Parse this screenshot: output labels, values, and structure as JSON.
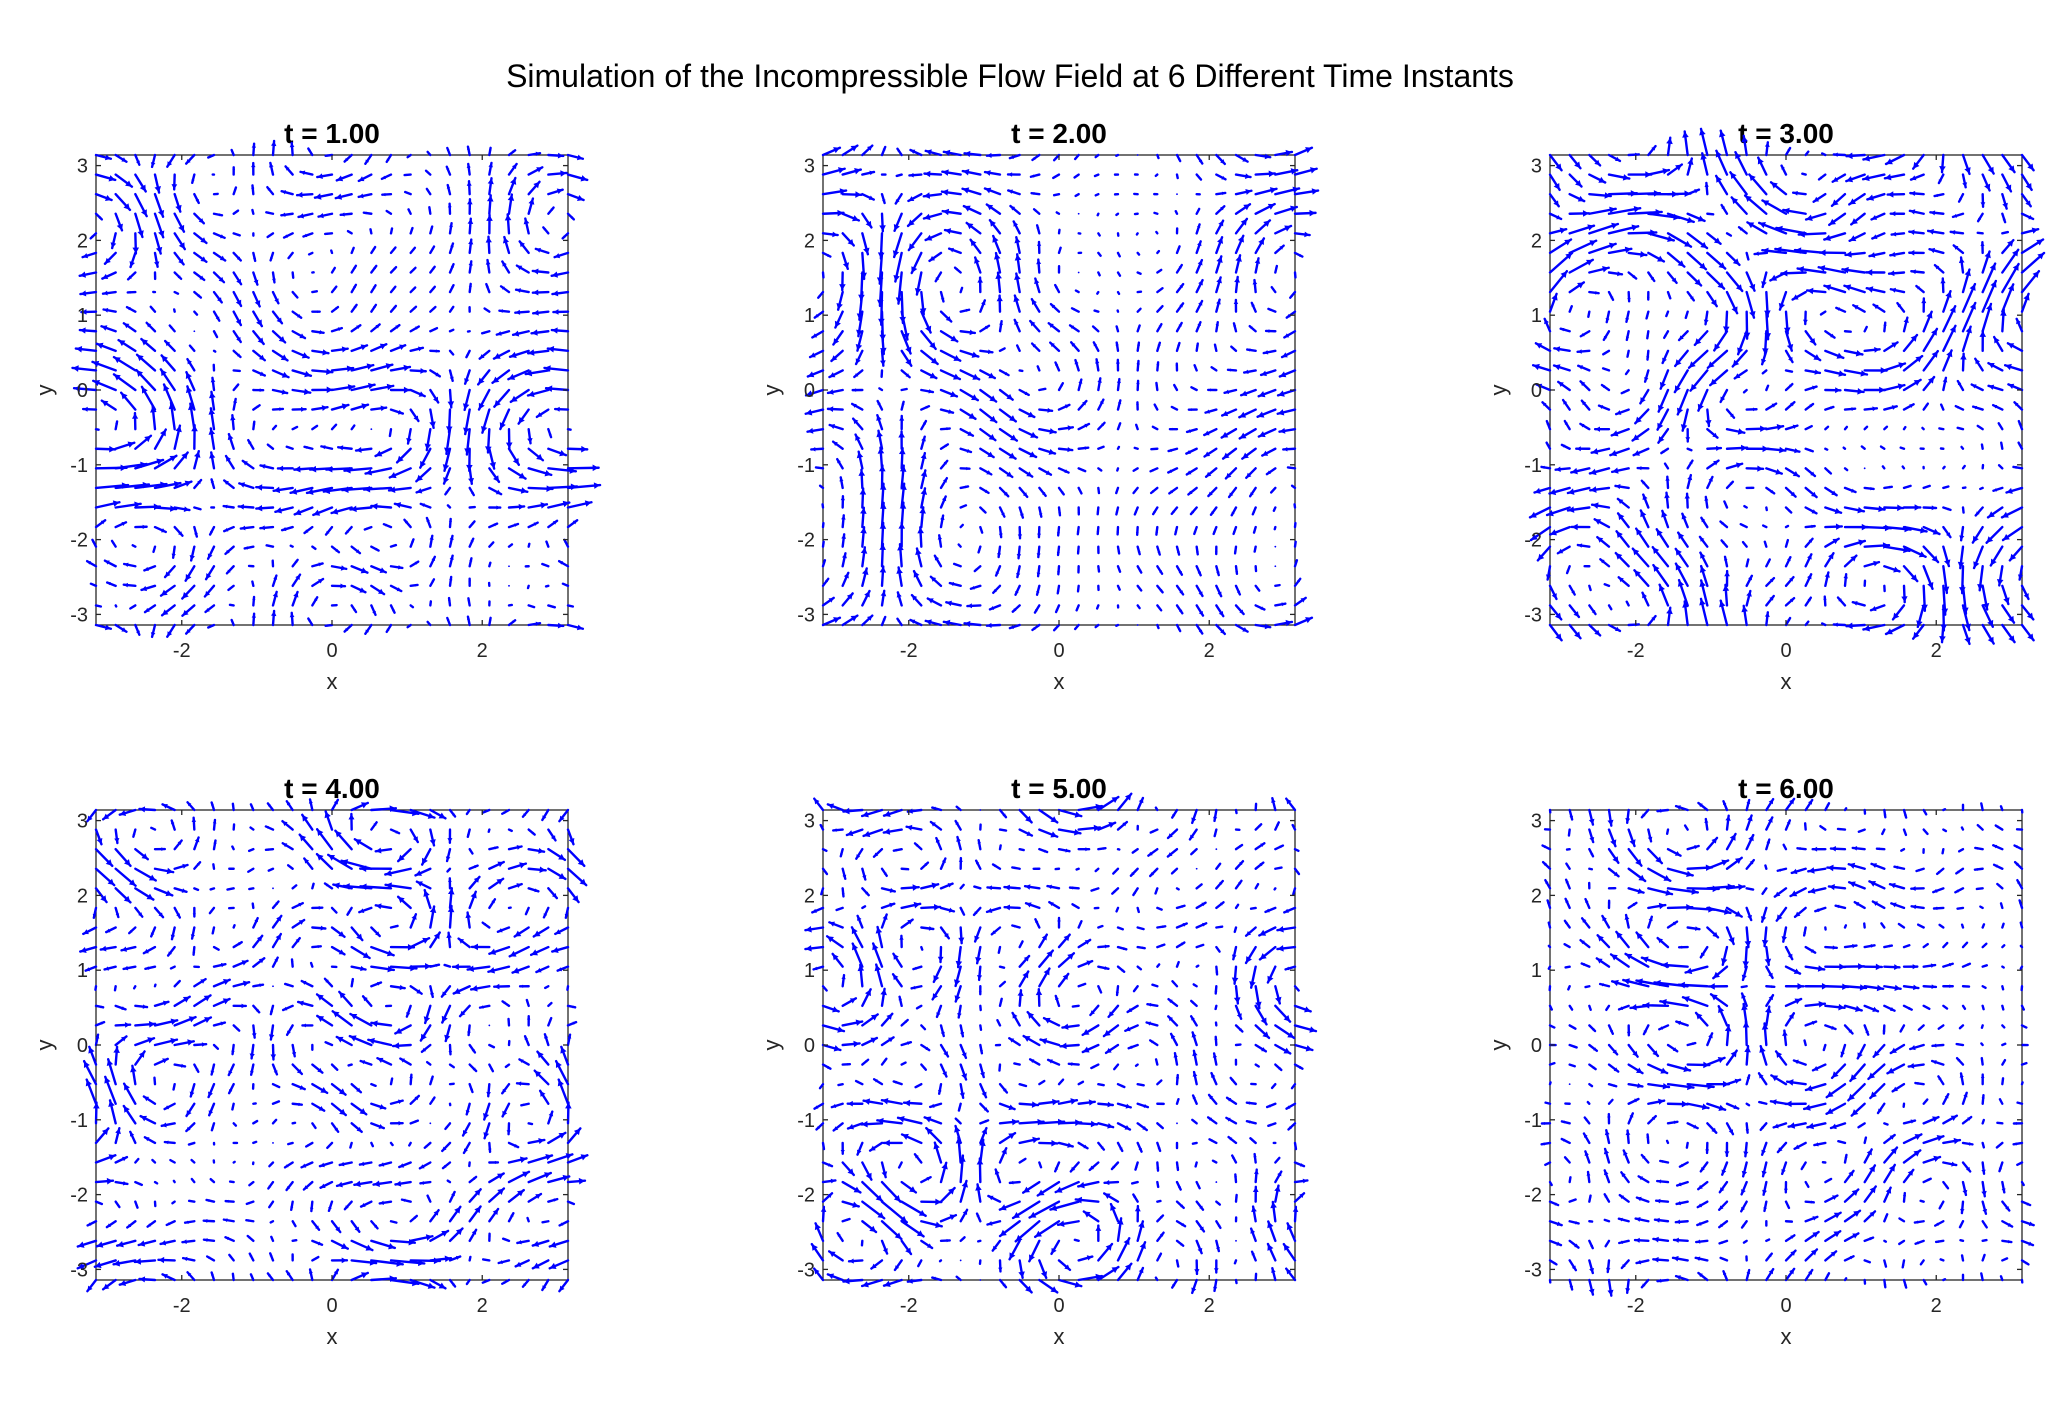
{
  "figure": {
    "title": "Simulation of the Incompressible Flow Field at 6 Different Time Instants"
  },
  "colors": {
    "arrow": "#0000ff",
    "axes": "#262626",
    "background": "#ffffff"
  },
  "chart_data": [
    {
      "type": "quiver",
      "title": "t = 1.00",
      "t": 1.0,
      "xlabel": "x",
      "ylabel": "y",
      "xlim": [
        -3.1416,
        3.1416
      ],
      "ylim": [
        -3.1416,
        3.1416
      ],
      "xticks": [
        "-2",
        "0",
        "2"
      ],
      "yticks": [
        "3",
        "2",
        "1",
        "0",
        "-1",
        "-2",
        "-3"
      ],
      "grid": false,
      "seed": 11
    },
    {
      "type": "quiver",
      "title": "t = 2.00",
      "t": 2.0,
      "xlabel": "x",
      "ylabel": "y",
      "xlim": [
        -3.1416,
        3.1416
      ],
      "ylim": [
        -3.1416,
        3.1416
      ],
      "xticks": [
        "-2",
        "0",
        "2"
      ],
      "yticks": [
        "3",
        "2",
        "1",
        "0",
        "-1",
        "-2",
        "-3"
      ],
      "grid": false,
      "seed": 23
    },
    {
      "type": "quiver",
      "title": "t = 3.00",
      "t": 3.0,
      "xlabel": "x",
      "ylabel": "y",
      "xlim": [
        -3.1416,
        3.1416
      ],
      "ylim": [
        -3.1416,
        3.1416
      ],
      "xticks": [
        "-2",
        "0",
        "2"
      ],
      "yticks": [
        "3",
        "2",
        "1",
        "0",
        "-1",
        "-2",
        "-3"
      ],
      "grid": false,
      "seed": 37
    },
    {
      "type": "quiver",
      "title": "t = 4.00",
      "t": 4.0,
      "xlabel": "x",
      "ylabel": "y",
      "xlim": [
        -3.1416,
        3.1416
      ],
      "ylim": [
        -3.1416,
        3.1416
      ],
      "xticks": [
        "-2",
        "0",
        "2"
      ],
      "yticks": [
        "3",
        "2",
        "1",
        "0",
        "-1",
        "-2",
        "-3"
      ],
      "grid": false,
      "seed": 41
    },
    {
      "type": "quiver",
      "title": "t = 5.00",
      "t": 5.0,
      "xlabel": "x",
      "ylabel": "y",
      "xlim": [
        -3.1416,
        3.1416
      ],
      "ylim": [
        -3.1416,
        3.1416
      ],
      "xticks": [
        "-2",
        "0",
        "2"
      ],
      "yticks": [
        "3",
        "2",
        "1",
        "0",
        "-1",
        "-2",
        "-3"
      ],
      "grid": false,
      "seed": 53
    },
    {
      "type": "quiver",
      "title": "t = 6.00",
      "t": 6.0,
      "xlabel": "x",
      "ylabel": "y",
      "xlim": [
        -3.1416,
        3.1416
      ],
      "ylim": [
        -3.1416,
        3.1416
      ],
      "xticks": [
        "-2",
        "0",
        "2"
      ],
      "yticks": [
        "3",
        "2",
        "1",
        "0",
        "-1",
        "-2",
        "-3"
      ],
      "grid": false,
      "seed": 67
    }
  ]
}
